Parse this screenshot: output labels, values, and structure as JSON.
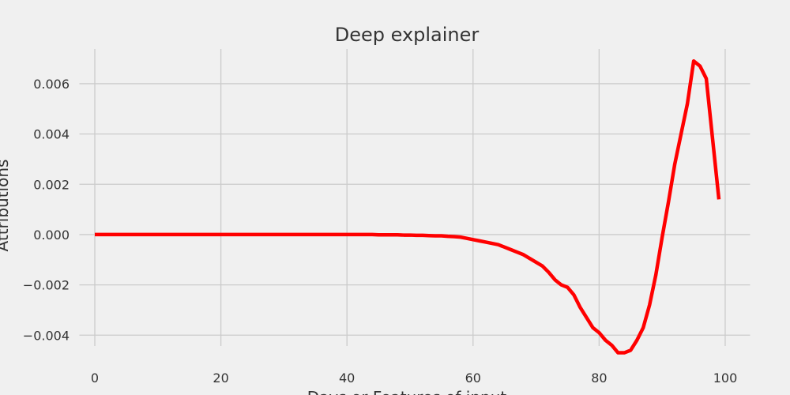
{
  "chart_data": {
    "type": "line",
    "title": "Deep explainer",
    "xlabel": "Days or Features of input",
    "ylabel": "Attributions",
    "x": [
      0,
      1,
      2,
      3,
      4,
      5,
      6,
      7,
      8,
      9,
      10,
      11,
      12,
      13,
      14,
      15,
      16,
      17,
      18,
      19,
      20,
      21,
      22,
      23,
      24,
      25,
      26,
      27,
      28,
      29,
      30,
      31,
      32,
      33,
      34,
      35,
      36,
      37,
      38,
      39,
      40,
      41,
      42,
      43,
      44,
      45,
      46,
      47,
      48,
      49,
      50,
      51,
      52,
      53,
      54,
      55,
      56,
      57,
      58,
      59,
      60,
      61,
      62,
      63,
      64,
      65,
      66,
      67,
      68,
      69,
      70,
      71,
      72,
      73,
      74,
      75,
      76,
      77,
      78,
      79,
      80,
      81,
      82,
      83,
      84,
      85,
      86,
      87,
      88,
      89,
      90,
      91,
      92,
      93,
      94,
      95,
      96,
      97,
      98,
      99
    ],
    "series": [
      {
        "name": "Attributions",
        "color": "#ff0000",
        "values": [
          0,
          0,
          0,
          0,
          0,
          0,
          0,
          0,
          0,
          0,
          0,
          0,
          0,
          0,
          0,
          0,
          0,
          0,
          0,
          0,
          0,
          0,
          0,
          0,
          0,
          0,
          0,
          0,
          0,
          0,
          0,
          0,
          0,
          0,
          0,
          0,
          0,
          0,
          0,
          0,
          0,
          0,
          0,
          0,
          0,
          -1e-05,
          -1e-05,
          -1e-05,
          -1e-05,
          -2e-05,
          -2e-05,
          -3e-05,
          -3e-05,
          -4e-05,
          -5e-05,
          -5e-05,
          -7e-05,
          -8e-05,
          -0.0001,
          -0.00015,
          -0.0002,
          -0.00025,
          -0.0003,
          -0.00035,
          -0.0004,
          -0.0005,
          -0.0006,
          -0.0007,
          -0.0008,
          -0.00095,
          -0.0011,
          -0.00125,
          -0.0015,
          -0.0018,
          -0.002,
          -0.0021,
          -0.0024,
          -0.0029,
          -0.0033,
          -0.0037,
          -0.0039,
          -0.0042,
          -0.0044,
          -0.0047,
          -0.0047,
          -0.0046,
          -0.0042,
          -0.0037,
          -0.0028,
          -0.0016,
          -0.0001,
          0.0013,
          0.0028,
          0.004,
          0.0052,
          0.0069,
          0.0067,
          0.0062,
          0.0038,
          0.0014
        ]
      }
    ],
    "xlim": [
      -4.95,
      103.95
    ],
    "xticks": [
      0,
      20,
      40,
      60,
      80,
      100
    ],
    "ylim": [
      -0.00506,
      0.00738
    ],
    "yticks": [
      {
        "value": -0.004,
        "label": "−0.004"
      },
      {
        "value": -0.002,
        "label": "−0.002"
      },
      {
        "value": 0,
        "label": "0.000"
      },
      {
        "value": 0.002,
        "label": "0.002"
      },
      {
        "value": 0.004,
        "label": "0.004"
      },
      {
        "value": 0.006,
        "label": "0.006"
      }
    ],
    "grid": true
  }
}
